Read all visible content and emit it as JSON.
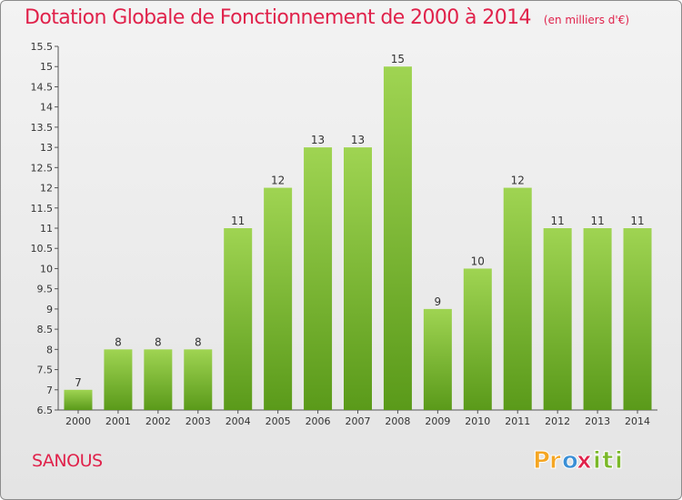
{
  "chart_data": {
    "type": "bar",
    "title": "Dotation Globale de Fonctionnement de 2000 à 2014",
    "subtitle": "(en milliers d'€)",
    "categories": [
      "2000",
      "2001",
      "2002",
      "2003",
      "2004",
      "2005",
      "2006",
      "2007",
      "2008",
      "2009",
      "2010",
      "2011",
      "2012",
      "2013",
      "2014"
    ],
    "values": [
      7,
      8,
      8,
      8,
      11,
      12,
      13,
      13,
      15,
      9,
      10,
      12,
      11,
      11,
      11
    ],
    "value_labels": [
      "7",
      "8",
      "8",
      "8",
      "11",
      "12",
      "13",
      "13",
      "15",
      "9",
      "10",
      "12",
      "11",
      "11",
      "11"
    ],
    "ylim": [
      6.5,
      15.5
    ],
    "yticks": [
      6.5,
      7,
      7.5,
      8,
      8.5,
      9,
      9.5,
      10,
      10.5,
      11,
      11.5,
      12,
      12.5,
      13,
      13.5,
      14,
      14.5,
      15,
      15.5
    ],
    "ytick_labels": [
      "6.5",
      "7",
      "7.5",
      "8",
      "8.5",
      "9",
      "9.5",
      "10",
      "10.5",
      "11",
      "11.5",
      "12",
      "12.5",
      "13",
      "13.5",
      "14",
      "14.5",
      "15",
      "15.5"
    ],
    "grid": false,
    "bar_color_top": "#9fd452",
    "bar_color_bottom": "#5a9a1a"
  },
  "commune": "SANOUS",
  "logo": {
    "letters": [
      "P",
      "r",
      "o",
      "x",
      "i",
      "t",
      "i"
    ],
    "colors": [
      "#f5a623",
      "#f5a623",
      "#3a8fd6",
      "#e0224b",
      "#7ab828",
      "#7ab828",
      "#7ab828"
    ]
  },
  "colors": {
    "title": "#e0224b",
    "axis": "#555555"
  }
}
